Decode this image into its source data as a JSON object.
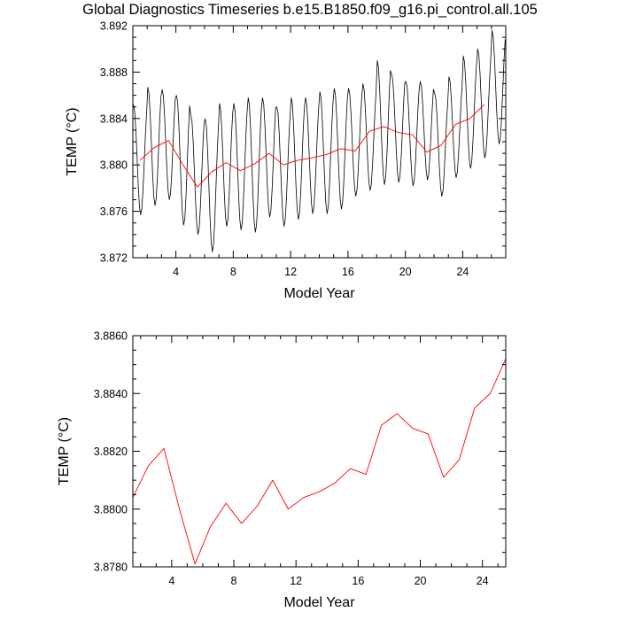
{
  "title": "Global Diagnostics Timeseries b.e15.B1850.f09_g16.pi_control.all.105",
  "colors": {
    "monthly": "#000000",
    "annual": "#ff0000",
    "frame": "#000000",
    "background": "#ffffff"
  },
  "chart_data": [
    {
      "type": "line",
      "xlabel": "Model Year",
      "ylabel": "TEMP (°C)",
      "xlim": [
        1,
        27
      ],
      "ylim": [
        3.872,
        3.892
      ],
      "xticks": [
        4,
        8,
        12,
        16,
        20,
        24
      ],
      "xtick_labels": [
        "4",
        "8",
        "12",
        "16",
        "20",
        "24"
      ],
      "yticks": [
        3.872,
        3.876,
        3.88,
        3.884,
        3.888,
        3.892
      ],
      "ytick_labels": [
        "3.872",
        "3.876",
        "3.880",
        "3.884",
        "3.888",
        "3.892"
      ],
      "grid": false,
      "series": [
        {
          "kind": "monthly-oscillation",
          "color": "#000000",
          "annual_peaks": [
            3.8852,
            3.8867,
            3.8865,
            3.886,
            3.8843,
            3.884,
            3.8853,
            3.8853,
            3.8858,
            3.8858,
            3.885,
            3.8858,
            3.8858,
            3.8863,
            3.8866,
            3.8866,
            3.887,
            3.889,
            3.8878,
            3.8872,
            3.8872,
            3.8862,
            3.8876,
            3.8894,
            3.89,
            3.8916
          ],
          "annual_troughs": [
            3.8757,
            3.8765,
            3.877,
            3.8748,
            3.874,
            3.8725,
            3.8747,
            3.8744,
            3.8742,
            3.8755,
            3.8747,
            3.8753,
            3.8758,
            3.8758,
            3.8762,
            3.8773,
            3.8778,
            3.8783,
            3.8785,
            3.8782,
            3.8787,
            3.8773,
            3.8789,
            3.8797,
            3.8806,
            3.8818
          ]
        },
        {
          "kind": "annual-mean",
          "color": "#ff0000",
          "x": [
            1.5,
            2.5,
            3.5,
            4.5,
            5.5,
            6.5,
            7.5,
            8.5,
            9.5,
            10.5,
            11.5,
            12.5,
            13.5,
            14.5,
            15.5,
            16.5,
            17.5,
            18.5,
            19.5,
            20.5,
            21.5,
            22.5,
            23.5,
            24.5,
            25.5
          ],
          "y": [
            3.8804,
            3.8815,
            3.8821,
            3.88,
            3.8781,
            3.8794,
            3.8802,
            3.8795,
            3.8801,
            3.881,
            3.88,
            3.8804,
            3.8806,
            3.8809,
            3.8814,
            3.8812,
            3.8829,
            3.8833,
            3.8828,
            3.8826,
            3.8811,
            3.8817,
            3.8835,
            3.884,
            3.8852
          ]
        }
      ]
    },
    {
      "type": "line",
      "xlabel": "Model Year",
      "ylabel": "TEMP (°C)",
      "xlim": [
        1.5,
        25.5
      ],
      "ylim": [
        3.878,
        3.886
      ],
      "xticks": [
        4,
        8,
        12,
        16,
        20,
        24
      ],
      "xtick_labels": [
        "4",
        "8",
        "12",
        "16",
        "20",
        "24"
      ],
      "yticks": [
        3.878,
        3.88,
        3.882,
        3.884,
        3.886
      ],
      "ytick_labels": [
        "3.8780",
        "3.8800",
        "3.8820",
        "3.8840",
        "3.8860"
      ],
      "grid": false,
      "series": [
        {
          "kind": "annual-mean",
          "color": "#ff0000",
          "x": [
            1.5,
            2.5,
            3.5,
            4.5,
            5.5,
            6.5,
            7.5,
            8.5,
            9.5,
            10.5,
            11.5,
            12.5,
            13.5,
            14.5,
            15.5,
            16.5,
            17.5,
            18.5,
            19.5,
            20.5,
            21.5,
            22.5,
            23.5,
            24.5,
            25.5
          ],
          "y": [
            3.8804,
            3.8815,
            3.8821,
            3.88,
            3.8781,
            3.8794,
            3.8802,
            3.8795,
            3.8801,
            3.881,
            3.88,
            3.8804,
            3.8806,
            3.8809,
            3.8814,
            3.8812,
            3.8829,
            3.8833,
            3.8828,
            3.8826,
            3.8811,
            3.8817,
            3.8835,
            3.884,
            3.8852
          ]
        }
      ]
    }
  ]
}
